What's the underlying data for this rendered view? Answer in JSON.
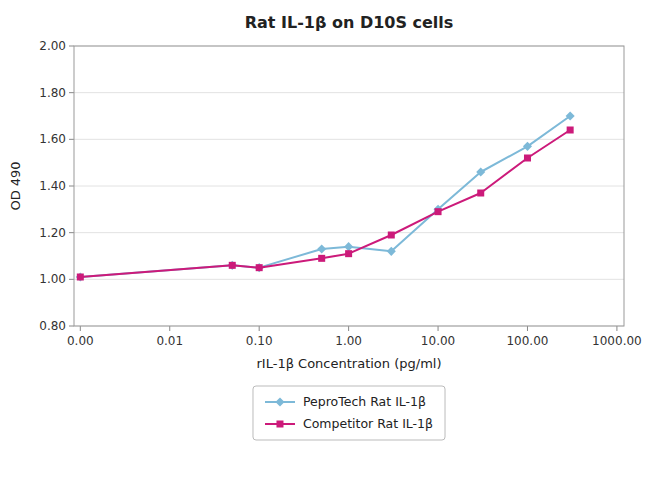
{
  "chart_data": {
    "type": "line",
    "title": "Rat IL-1β on D10S cells",
    "x_label": "rIL-1β Concentration (pg/ml)",
    "y_label": "OD 490",
    "log": "x",
    "grid": true,
    "legend": "bottom",
    "x": [
      0.001,
      0.05,
      0.1,
      0.5,
      1.0,
      3.0,
      10.0,
      30.0,
      100.0,
      300.0
    ],
    "xlim": [
      0.00085,
      1200
    ],
    "xticks": [
      {
        "value": 0.001,
        "label": "0.00"
      },
      0.01,
      {
        "value": 0.1,
        "label": "0.10"
      },
      {
        "value": 1.0,
        "label": "1.00"
      },
      {
        "value": 10.0,
        "label": "10.00"
      },
      {
        "value": 100.0,
        "label": "100.00"
      },
      {
        "value": 1000.0,
        "label": "1000.00"
      }
    ],
    "ylim": [
      0.8,
      2.0
    ],
    "yticks": [
      {
        "value": 0.8,
        "label": "0.80"
      },
      {
        "value": 1.0,
        "label": "1.00"
      },
      {
        "value": 1.2,
        "label": "1.20"
      },
      {
        "value": 1.4,
        "label": "1.40"
      },
      {
        "value": 1.6,
        "label": "1.60"
      },
      {
        "value": 1.8,
        "label": "1.80"
      },
      {
        "value": 2.0,
        "label": "2.00"
      }
    ],
    "series": [
      {
        "name": "PeproTech Rat IL-1β",
        "color": "#7db9d8",
        "marker": "diamond",
        "values": [
          1.01,
          1.06,
          1.05,
          1.13,
          1.14,
          1.12,
          1.3,
          1.46,
          1.57,
          1.7
        ]
      },
      {
        "name": "Competitor Rat IL-1β",
        "color": "#cc1a7a",
        "marker": "square",
        "values": [
          1.01,
          1.06,
          1.05,
          1.09,
          1.11,
          1.19,
          1.29,
          1.37,
          1.52,
          1.64
        ]
      }
    ]
  }
}
